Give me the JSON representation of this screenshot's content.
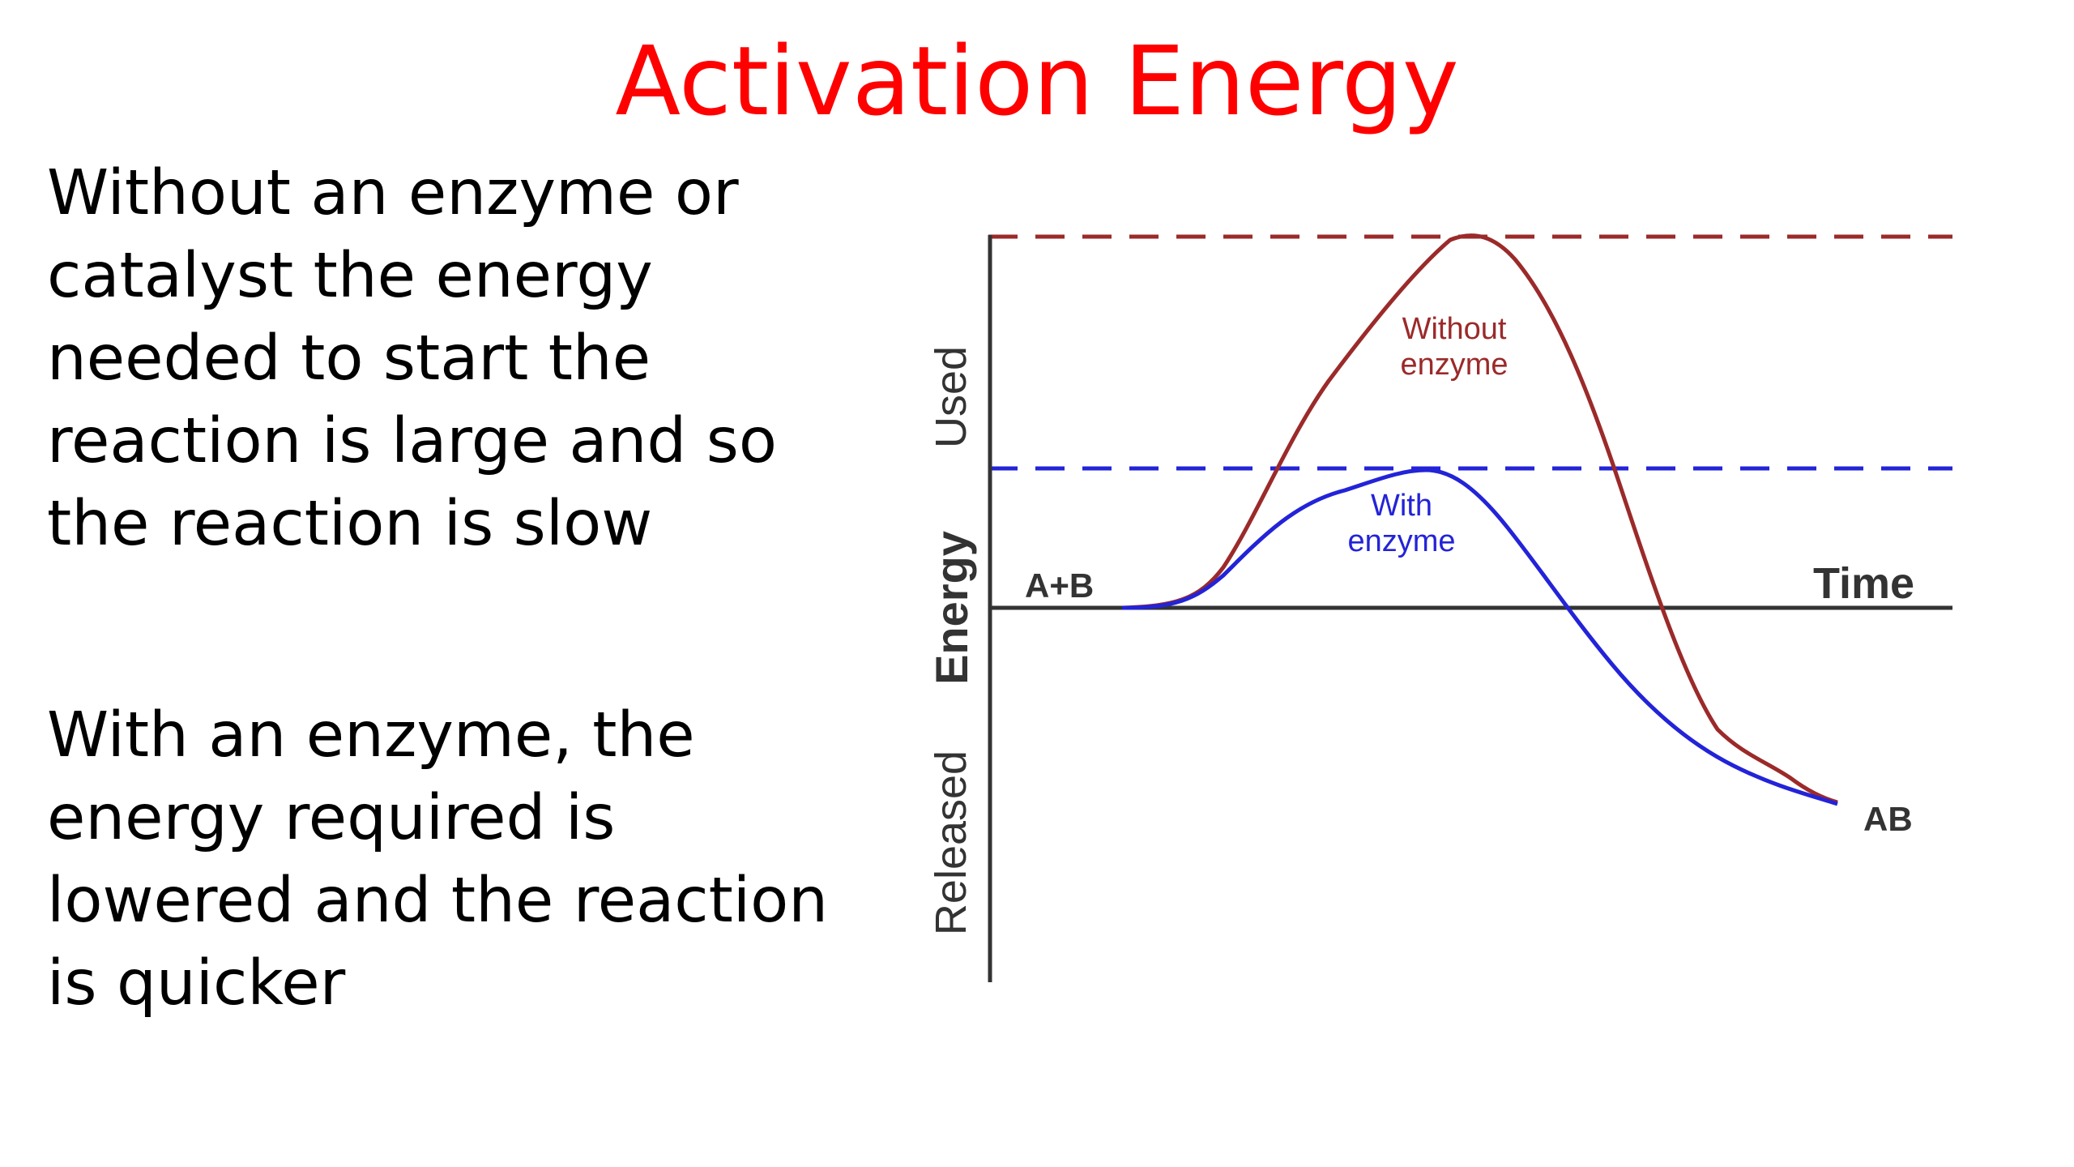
{
  "title": "Activation Energy",
  "paragraphs": {
    "without": "Without an enzyme or catalyst the energy needed to start the reaction is large and so the reaction is slow",
    "with": "With an enzyme, the energy required is lowered and the reaction is quicker"
  },
  "diagram": {
    "y_axis_labels": {
      "used": "Used",
      "energy": "Energy",
      "released": "Released"
    },
    "x_axis_label": "Time",
    "reactants_label": "A+B",
    "product_label": "AB",
    "curves": {
      "without_enzyme": {
        "label_line1": "Without",
        "label_line2": "enzyme",
        "color": "#9b2a2a"
      },
      "with_enzyme": {
        "label_line1": "With",
        "label_line2": "enzyme",
        "color": "#2323d8"
      }
    },
    "axis_color": "#333333"
  }
}
